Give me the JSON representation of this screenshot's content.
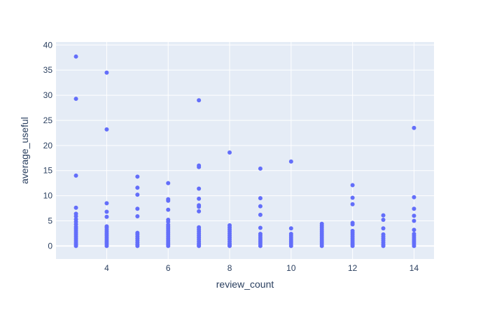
{
  "chart_data": {
    "type": "scatter",
    "title": "",
    "xlabel": "review_count",
    "ylabel": "average_useful",
    "xlim": [
      2.35,
      14.65
    ],
    "ylim": [
      -2.6,
      40.6
    ],
    "xticks": [
      4,
      6,
      8,
      10,
      12,
      14
    ],
    "yticks": [
      0,
      5,
      10,
      15,
      20,
      25,
      30,
      35,
      40
    ],
    "grid": true,
    "legend": "none",
    "colors": {
      "marker": "#636efa",
      "plot_bg": "#e5ecf6",
      "grid": "#ffffff",
      "paper_bg": "#ffffff",
      "text": "#2a3f5f"
    },
    "points": [
      {
        "x": 3,
        "y": 37.7
      },
      {
        "x": 3,
        "y": 29.3
      },
      {
        "x": 3,
        "y": 14.0
      },
      {
        "x": 3,
        "y": 7.6
      },
      {
        "x": 3,
        "y": 6.4
      },
      {
        "x": 3,
        "y": 5.9
      },
      {
        "x": 3,
        "y": 5.3
      },
      {
        "x": 3,
        "y": 4.8
      },
      {
        "x": 3,
        "y": 4.3
      },
      {
        "x": 3,
        "y": 3.8
      },
      {
        "x": 3,
        "y": 3.4
      },
      {
        "x": 3,
        "y": 3.0
      },
      {
        "x": 3,
        "y": 2.6
      },
      {
        "x": 3,
        "y": 2.2
      },
      {
        "x": 3,
        "y": 1.8
      },
      {
        "x": 3,
        "y": 1.4
      },
      {
        "x": 3,
        "y": 1.0
      },
      {
        "x": 3,
        "y": 0.6
      },
      {
        "x": 3,
        "y": 0.3
      },
      {
        "x": 3,
        "y": 0.0
      },
      {
        "x": 4,
        "y": 34.5
      },
      {
        "x": 4,
        "y": 23.2
      },
      {
        "x": 4,
        "y": 8.5
      },
      {
        "x": 4,
        "y": 6.8
      },
      {
        "x": 4,
        "y": 5.8
      },
      {
        "x": 4,
        "y": 3.9
      },
      {
        "x": 4,
        "y": 3.6
      },
      {
        "x": 4,
        "y": 3.2
      },
      {
        "x": 4,
        "y": 2.8
      },
      {
        "x": 4,
        "y": 2.4
      },
      {
        "x": 4,
        "y": 2.0
      },
      {
        "x": 4,
        "y": 1.6
      },
      {
        "x": 4,
        "y": 1.2
      },
      {
        "x": 4,
        "y": 0.8
      },
      {
        "x": 4,
        "y": 0.4
      },
      {
        "x": 4,
        "y": 0.0
      },
      {
        "x": 5,
        "y": 13.8
      },
      {
        "x": 5,
        "y": 11.6
      },
      {
        "x": 5,
        "y": 10.2
      },
      {
        "x": 5,
        "y": 7.4
      },
      {
        "x": 5,
        "y": 5.9
      },
      {
        "x": 5,
        "y": 2.6
      },
      {
        "x": 5,
        "y": 2.3
      },
      {
        "x": 5,
        "y": 1.9
      },
      {
        "x": 5,
        "y": 1.5
      },
      {
        "x": 5,
        "y": 1.1
      },
      {
        "x": 5,
        "y": 0.7
      },
      {
        "x": 5,
        "y": 0.3
      },
      {
        "x": 5,
        "y": 0.0
      },
      {
        "x": 6,
        "y": 12.5
      },
      {
        "x": 6,
        "y": 9.3
      },
      {
        "x": 6,
        "y": 9.0
      },
      {
        "x": 6,
        "y": 7.2
      },
      {
        "x": 6,
        "y": 5.2
      },
      {
        "x": 6,
        "y": 4.8
      },
      {
        "x": 6,
        "y": 4.2
      },
      {
        "x": 6,
        "y": 3.8
      },
      {
        "x": 6,
        "y": 3.4
      },
      {
        "x": 6,
        "y": 3.0
      },
      {
        "x": 6,
        "y": 2.6
      },
      {
        "x": 6,
        "y": 2.2
      },
      {
        "x": 6,
        "y": 1.8
      },
      {
        "x": 6,
        "y": 1.4
      },
      {
        "x": 6,
        "y": 1.0
      },
      {
        "x": 6,
        "y": 0.6
      },
      {
        "x": 6,
        "y": 0.3
      },
      {
        "x": 6,
        "y": 0.0
      },
      {
        "x": 7,
        "y": 29.0
      },
      {
        "x": 7,
        "y": 16.0
      },
      {
        "x": 7,
        "y": 15.7
      },
      {
        "x": 7,
        "y": 11.4
      },
      {
        "x": 7,
        "y": 9.4
      },
      {
        "x": 7,
        "y": 8.1
      },
      {
        "x": 7,
        "y": 7.8
      },
      {
        "x": 7,
        "y": 6.9
      },
      {
        "x": 7,
        "y": 3.7
      },
      {
        "x": 7,
        "y": 3.3
      },
      {
        "x": 7,
        "y": 2.9
      },
      {
        "x": 7,
        "y": 2.5
      },
      {
        "x": 7,
        "y": 2.1
      },
      {
        "x": 7,
        "y": 1.7
      },
      {
        "x": 7,
        "y": 1.3
      },
      {
        "x": 7,
        "y": 0.9
      },
      {
        "x": 7,
        "y": 0.5
      },
      {
        "x": 7,
        "y": 0.2
      },
      {
        "x": 7,
        "y": 0.0
      },
      {
        "x": 8,
        "y": 18.6
      },
      {
        "x": 8,
        "y": 4.1
      },
      {
        "x": 8,
        "y": 3.7
      },
      {
        "x": 8,
        "y": 3.3
      },
      {
        "x": 8,
        "y": 2.9
      },
      {
        "x": 8,
        "y": 2.5
      },
      {
        "x": 8,
        "y": 2.1
      },
      {
        "x": 8,
        "y": 1.7
      },
      {
        "x": 8,
        "y": 1.3
      },
      {
        "x": 8,
        "y": 0.9
      },
      {
        "x": 8,
        "y": 0.5
      },
      {
        "x": 8,
        "y": 0.2
      },
      {
        "x": 8,
        "y": 0.0
      },
      {
        "x": 9,
        "y": 15.4
      },
      {
        "x": 9,
        "y": 9.5
      },
      {
        "x": 9,
        "y": 7.9
      },
      {
        "x": 9,
        "y": 6.2
      },
      {
        "x": 9,
        "y": 3.6
      },
      {
        "x": 9,
        "y": 2.4
      },
      {
        "x": 9,
        "y": 2.0
      },
      {
        "x": 9,
        "y": 1.6
      },
      {
        "x": 9,
        "y": 1.2
      },
      {
        "x": 9,
        "y": 0.8
      },
      {
        "x": 9,
        "y": 0.4
      },
      {
        "x": 9,
        "y": 0.0
      },
      {
        "x": 10,
        "y": 16.8
      },
      {
        "x": 10,
        "y": 3.5
      },
      {
        "x": 10,
        "y": 2.4
      },
      {
        "x": 10,
        "y": 2.0
      },
      {
        "x": 10,
        "y": 1.6
      },
      {
        "x": 10,
        "y": 1.2
      },
      {
        "x": 10,
        "y": 0.8
      },
      {
        "x": 10,
        "y": 0.4
      },
      {
        "x": 10,
        "y": 0.0
      },
      {
        "x": 11,
        "y": 4.4
      },
      {
        "x": 11,
        "y": 4.0
      },
      {
        "x": 11,
        "y": 3.6
      },
      {
        "x": 11,
        "y": 3.2
      },
      {
        "x": 11,
        "y": 2.8
      },
      {
        "x": 11,
        "y": 2.4
      },
      {
        "x": 11,
        "y": 2.0
      },
      {
        "x": 11,
        "y": 1.6
      },
      {
        "x": 11,
        "y": 1.2
      },
      {
        "x": 11,
        "y": 0.8
      },
      {
        "x": 11,
        "y": 0.4
      },
      {
        "x": 11,
        "y": 0.0
      },
      {
        "x": 12,
        "y": 12.1
      },
      {
        "x": 12,
        "y": 9.6
      },
      {
        "x": 12,
        "y": 8.3
      },
      {
        "x": 12,
        "y": 4.6
      },
      {
        "x": 12,
        "y": 4.3
      },
      {
        "x": 12,
        "y": 3.0
      },
      {
        "x": 12,
        "y": 2.6
      },
      {
        "x": 12,
        "y": 2.2
      },
      {
        "x": 12,
        "y": 1.8
      },
      {
        "x": 12,
        "y": 1.4
      },
      {
        "x": 12,
        "y": 1.0
      },
      {
        "x": 12,
        "y": 0.6
      },
      {
        "x": 12,
        "y": 0.3
      },
      {
        "x": 12,
        "y": 0.0
      },
      {
        "x": 13,
        "y": 6.1
      },
      {
        "x": 13,
        "y": 5.2
      },
      {
        "x": 13,
        "y": 3.5
      },
      {
        "x": 13,
        "y": 2.3
      },
      {
        "x": 13,
        "y": 1.9
      },
      {
        "x": 13,
        "y": 1.5
      },
      {
        "x": 13,
        "y": 1.1
      },
      {
        "x": 13,
        "y": 0.7
      },
      {
        "x": 13,
        "y": 0.3
      },
      {
        "x": 13,
        "y": 0.0
      },
      {
        "x": 14,
        "y": 23.5
      },
      {
        "x": 14,
        "y": 9.7
      },
      {
        "x": 14,
        "y": 7.4
      },
      {
        "x": 14,
        "y": 6.0
      },
      {
        "x": 14,
        "y": 5.0
      },
      {
        "x": 14,
        "y": 3.2
      },
      {
        "x": 14,
        "y": 2.4
      },
      {
        "x": 14,
        "y": 2.0
      },
      {
        "x": 14,
        "y": 1.6
      },
      {
        "x": 14,
        "y": 1.2
      },
      {
        "x": 14,
        "y": 0.8
      },
      {
        "x": 14,
        "y": 0.4
      },
      {
        "x": 14,
        "y": 0.0
      }
    ]
  }
}
